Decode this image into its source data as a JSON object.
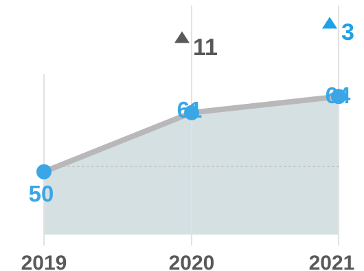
{
  "chart_data": {
    "type": "area",
    "categories": [
      "2019",
      "2020",
      "2021"
    ],
    "values": [
      50,
      61,
      64
    ],
    "value_labels": [
      "50",
      "61",
      "64"
    ],
    "changes": [
      {
        "category": "2020",
        "delta": 11,
        "label": "11",
        "direction": "up",
        "color": "#595959"
      },
      {
        "category": "2021",
        "delta": 3,
        "label": "3",
        "direction": "up",
        "color": "#1fa1e8"
      }
    ],
    "ylim": [
      30,
      73
    ],
    "reference_line": 51,
    "grid": true,
    "legend": "none",
    "colors": {
      "area_fill": "#d5e0e3",
      "line": "#b8b8b8",
      "marker": "#3aa6e6",
      "value_label": "#3aa6e6",
      "year_label": "#595959",
      "gridline": "#e2e2e2",
      "reference": "#bfbfbf"
    }
  }
}
